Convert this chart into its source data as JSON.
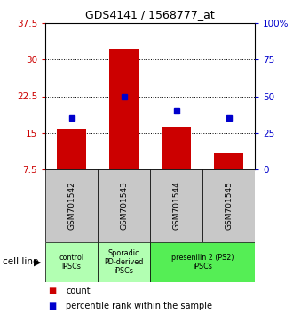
{
  "title": "GDS4141 / 1568777_at",
  "categories": [
    "GSM701542",
    "GSM701543",
    "GSM701544",
    "GSM701545"
  ],
  "red_values": [
    15.8,
    32.2,
    16.2,
    10.8
  ],
  "blue_pct": [
    35,
    50,
    40,
    35
  ],
  "ylim_left": [
    7.5,
    37.5
  ],
  "ylim_right": [
    0,
    100
  ],
  "left_ticks": [
    7.5,
    15,
    22.5,
    30,
    37.5
  ],
  "right_ticks": [
    0,
    25,
    50,
    75,
    100
  ],
  "right_tick_labels": [
    "0",
    "25",
    "50",
    "75",
    "100%"
  ],
  "red_color": "#cc0000",
  "blue_color": "#0000cc",
  "bar_bottom": 7.5,
  "dotted_lines": [
    15,
    22.5,
    30
  ],
  "gray_color": "#c8c8c8",
  "green_light": "#b2ffb2",
  "green_bright": "#55ee55",
  "bar_width": 0.55
}
